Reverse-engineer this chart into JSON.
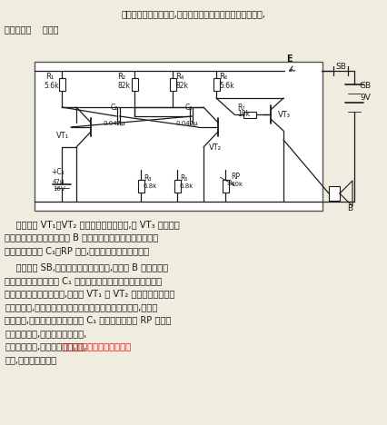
{
  "bg_color": "#f0ece0",
  "text_color": "#1a1a1a",
  "title1": "该电子门铃的音调丰富,可用于门铃、声音模拟器、报警器等,",
  "title2": "其电路如图    所示。",
  "p1_lines": [
    "    由三极管 VT₁、VT₂ 组成自激多谐振荡器,由 VT₃ 组成功率",
    "放大器。音频信号由扬声器 B 发出。在多谐振荡器两三极管的",
    "发射极回路接入 C₁、RP 电路,以保证频率平稳地变化。"
  ],
  "p2_lines": [
    "    按下按钮 SB,电源加在多谐振荡器上,扬声器 B 便发出一定",
    "音调的声音。同时电容 C₁ 开始通过轮流导通的多谐振荡器的三",
    "极管充电。随着电容充电,三极管 VT₁ 和 VT₂ 基极和发射极之间",
    "的偏压减小,多谐振荡器的振荡频率增大。经过一定时间,两个三",
    "极管截止,多谐振荡器停振。电容 C₁ 开始通过电位器 RP 放电。",
    "随着电容放电,电容上的电压下降,"
  ],
  "p2_red": "很快,多谐振荡器又重新开始",
  "p2_last": "工作,重复上述过程。",
  "lc": "#1a1a1a",
  "lw": 0.9
}
